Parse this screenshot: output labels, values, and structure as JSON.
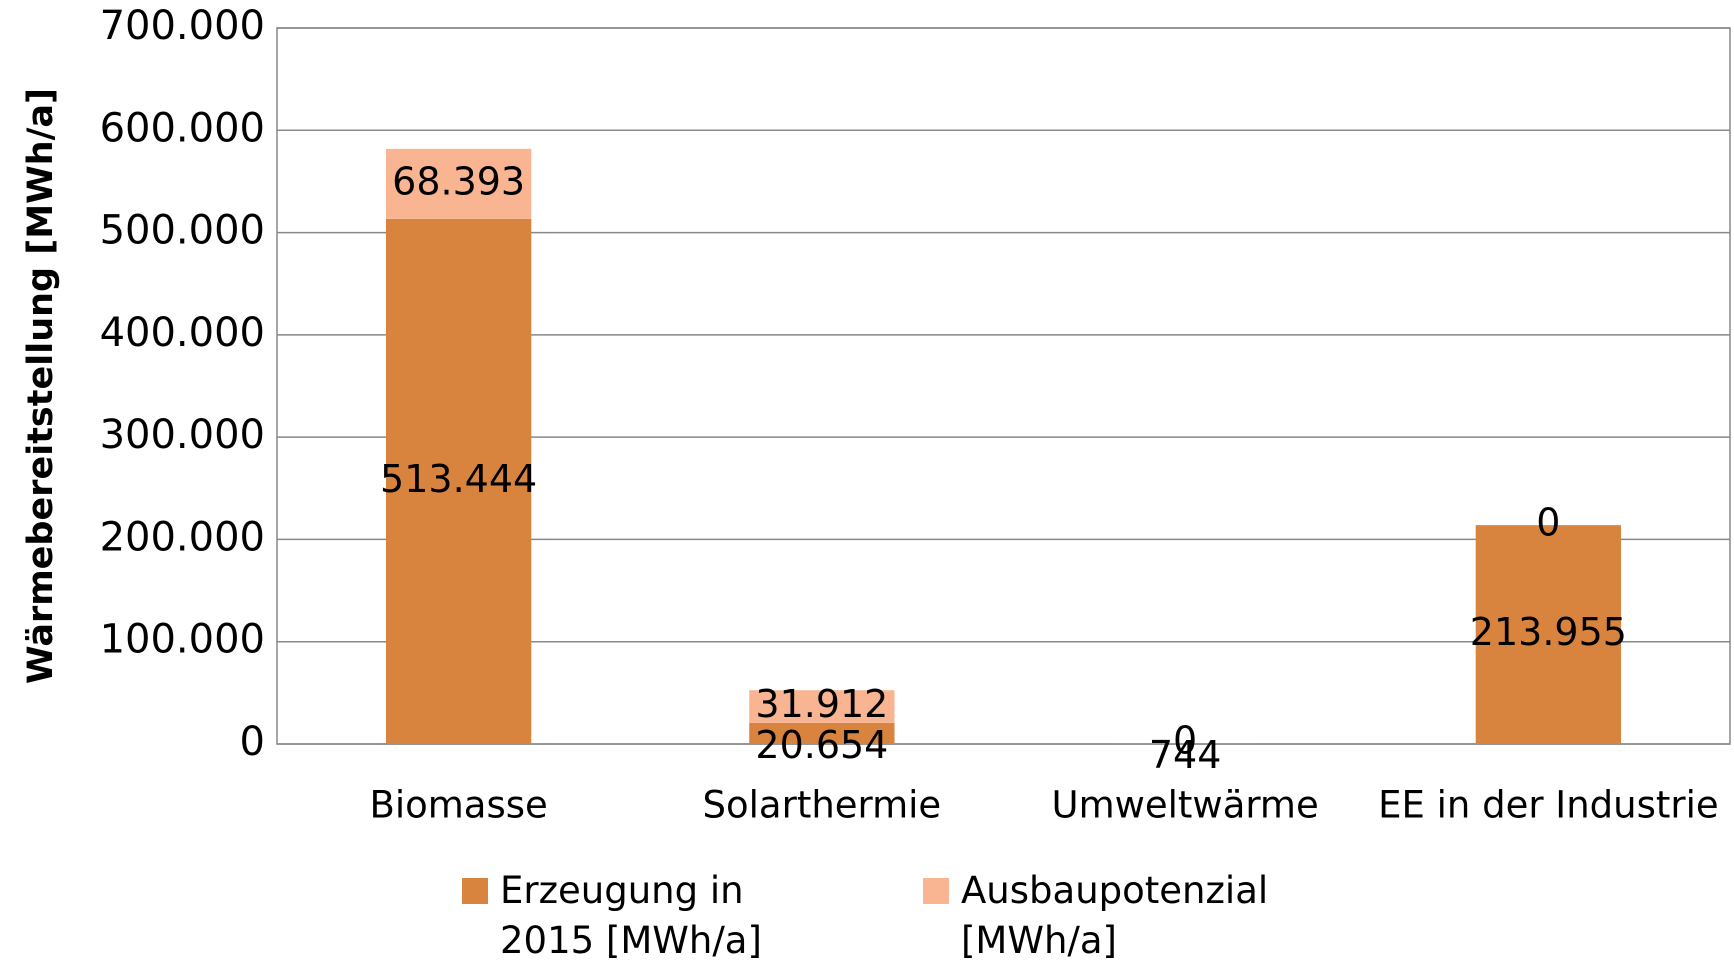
{
  "chart_data": {
    "type": "stacked_bar",
    "y_axis_label": "Wärmebereitstellung [MWh/a]",
    "categories": [
      "Biomasse",
      "Solarthermie",
      "Umweltwärme",
      "EE in der Industrie"
    ],
    "series": [
      {
        "name": "Erzeugung in 2015 [MWh/a]",
        "color": "#d9843e",
        "values": [
          513444,
          20654,
          744,
          213955
        ],
        "value_labels": [
          "513.444",
          "20.654",
          "744",
          "213.955"
        ]
      },
      {
        "name": "Ausbaupotenzial [MWh/a]",
        "color": "#f9b592",
        "values": [
          68393,
          31912,
          0,
          0
        ],
        "value_labels": [
          "68.393",
          "31.912",
          "0",
          "0"
        ]
      }
    ],
    "ylim": [
      0,
      700000
    ],
    "yticks": [
      0,
      {
        "value": 100000,
        "label": "100.000"
      },
      {
        "value": 200000,
        "label": "200.000"
      },
      {
        "value": 300000,
        "label": "300.000"
      },
      {
        "value": 400000,
        "label": "400.000"
      },
      {
        "value": 500000,
        "label": "500.000"
      },
      {
        "value": 600000,
        "label": "600.000"
      },
      {
        "value": 700000,
        "label": "700.000"
      }
    ],
    "grid": true,
    "legend": "bottom"
  }
}
